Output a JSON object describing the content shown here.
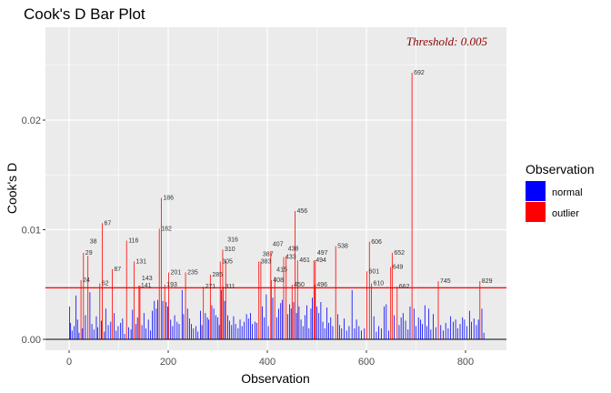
{
  "chart_data": {
    "type": "bar",
    "title": "Cook's D Bar Plot",
    "xlabel": "Observation",
    "ylabel": "Cook's D",
    "xlim": [
      -48,
      882
    ],
    "ylim": [
      -0.001,
      0.0285
    ],
    "x_ticks": [
      0,
      200,
      400,
      600,
      800
    ],
    "x_tick_labels": [
      "0",
      "200",
      "400",
      "600",
      "800"
    ],
    "y_ticks": [
      0,
      0.01,
      0.02
    ],
    "y_tick_labels": [
      "0.00",
      "0.01",
      "0.02"
    ],
    "grid": true,
    "threshold": 0.0047,
    "threshold_label": "Threshold: 0.005",
    "legend": {
      "title": "Observation",
      "placement": "right",
      "entries": [
        {
          "label": "normal",
          "color": "#0000FF"
        },
        {
          "label": "outlier",
          "color": "#FF0000"
        }
      ]
    },
    "outliers": [
      [
        24,
        0.0054
      ],
      [
        29,
        0.0079
      ],
      [
        38,
        0.0076
      ],
      [
        62,
        0.0051
      ],
      [
        67,
        0.0106
      ],
      [
        87,
        0.0064
      ],
      [
        116,
        0.009
      ],
      [
        131,
        0.0071
      ],
      [
        141,
        0.0049
      ],
      [
        143,
        0.0049
      ],
      [
        182,
        0.0101
      ],
      [
        186,
        0.0129
      ],
      [
        193,
        0.005
      ],
      [
        201,
        0.0061
      ],
      [
        235,
        0.0061
      ],
      [
        271,
        0.0048
      ],
      [
        285,
        0.0059
      ],
      [
        305,
        0.0071
      ],
      [
        310,
        0.0082
      ],
      [
        311,
        0.0048
      ],
      [
        316,
        0.0071
      ],
      [
        383,
        0.0071
      ],
      [
        387,
        0.0071
      ],
      [
        407,
        0.008
      ],
      [
        408,
        0.0054
      ],
      [
        415,
        0.0057
      ],
      [
        433,
        0.0075
      ],
      [
        438,
        0.0076
      ],
      [
        450,
        0.005
      ],
      [
        456,
        0.0117
      ],
      [
        461,
        0.0072
      ],
      [
        494,
        0.0072
      ],
      [
        496,
        0.005
      ],
      [
        497,
        0.0072
      ],
      [
        538,
        0.0085
      ],
      [
        601,
        0.0062
      ],
      [
        606,
        0.0089
      ],
      [
        610,
        0.0051
      ],
      [
        649,
        0.0066
      ],
      [
        652,
        0.0079
      ],
      [
        662,
        0.0048
      ],
      [
        692,
        0.0243
      ],
      [
        745,
        0.0053
      ],
      [
        829,
        0.0053
      ]
    ],
    "normal": [
      [
        1,
        0.003
      ],
      [
        3,
        0.0015
      ],
      [
        6,
        0.0008
      ],
      [
        10,
        0.0012
      ],
      [
        14,
        0.004
      ],
      [
        17,
        0.0018
      ],
      [
        20,
        0.0006
      ],
      [
        27,
        0.001
      ],
      [
        33,
        0.0022
      ],
      [
        42,
        0.0043
      ],
      [
        46,
        0.0014
      ],
      [
        50,
        0.0009
      ],
      [
        55,
        0.0021
      ],
      [
        58,
        0.0011
      ],
      [
        65,
        0.0017
      ],
      [
        71,
        0.0007
      ],
      [
        74,
        0.0028
      ],
      [
        79,
        0.0013
      ],
      [
        84,
        0.0016
      ],
      [
        91,
        0.0024
      ],
      [
        95,
        0.0008
      ],
      [
        99,
        0.0012
      ],
      [
        104,
        0.0015
      ],
      [
        108,
        0.0019
      ],
      [
        112,
        0.0005
      ],
      [
        120,
        0.0011
      ],
      [
        125,
        0.0009
      ],
      [
        128,
        0.0027
      ],
      [
        135,
        0.0014
      ],
      [
        138,
        0.002
      ],
      [
        147,
        0.0013
      ],
      [
        151,
        0.0024
      ],
      [
        155,
        0.001
      ],
      [
        160,
        0.0018
      ],
      [
        164,
        0.0008
      ],
      [
        168,
        0.0026
      ],
      [
        172,
        0.0035
      ],
      [
        176,
        0.0028
      ],
      [
        179,
        0.0036
      ],
      [
        189,
        0.0035
      ],
      [
        196,
        0.0034
      ],
      [
        199,
        0.003
      ],
      [
        205,
        0.0018
      ],
      [
        209,
        0.0012
      ],
      [
        213,
        0.0022
      ],
      [
        218,
        0.0016
      ],
      [
        222,
        0.0014
      ],
      [
        228,
        0.0045
      ],
      [
        231,
        0.0023
      ],
      [
        239,
        0.0028
      ],
      [
        243,
        0.0019
      ],
      [
        247,
        0.0014
      ],
      [
        251,
        0.001
      ],
      [
        256,
        0.0012
      ],
      [
        260,
        0.0007
      ],
      [
        265,
        0.0026
      ],
      [
        268,
        0.0013
      ],
      [
        275,
        0.0024
      ],
      [
        279,
        0.002
      ],
      [
        282,
        0.0018
      ],
      [
        288,
        0.0031
      ],
      [
        292,
        0.0028
      ],
      [
        296,
        0.0022
      ],
      [
        300,
        0.002
      ],
      [
        303,
        0.0013
      ],
      [
        307,
        0.0045
      ],
      [
        314,
        0.0035
      ],
      [
        320,
        0.0022
      ],
      [
        324,
        0.0017
      ],
      [
        328,
        0.0013
      ],
      [
        332,
        0.0021
      ],
      [
        336,
        0.0014
      ],
      [
        341,
        0.001
      ],
      [
        345,
        0.0018
      ],
      [
        349,
        0.0012
      ],
      [
        353,
        0.0016
      ],
      [
        358,
        0.0023
      ],
      [
        362,
        0.0019
      ],
      [
        366,
        0.0024
      ],
      [
        370,
        0.0014
      ],
      [
        375,
        0.0016
      ],
      [
        379,
        0.0015
      ],
      [
        390,
        0.003
      ],
      [
        394,
        0.002
      ],
      [
        398,
        0.0041
      ],
      [
        402,
        0.0012
      ],
      [
        411,
        0.0038
      ],
      [
        419,
        0.002
      ],
      [
        423,
        0.0028
      ],
      [
        427,
        0.0033
      ],
      [
        430,
        0.0036
      ],
      [
        441,
        0.0023
      ],
      [
        445,
        0.0032
      ],
      [
        448,
        0.0028
      ],
      [
        453,
        0.0034
      ],
      [
        459,
        0.0024
      ],
      [
        464,
        0.003
      ],
      [
        468,
        0.0018
      ],
      [
        472,
        0.0012
      ],
      [
        476,
        0.0022
      ],
      [
        480,
        0.0031
      ],
      [
        484,
        0.001
      ],
      [
        488,
        0.0028
      ],
      [
        491,
        0.0038
      ],
      [
        500,
        0.003
      ],
      [
        504,
        0.0024
      ],
      [
        508,
        0.0034
      ],
      [
        512,
        0.0016
      ],
      [
        516,
        0.001
      ],
      [
        520,
        0.0029
      ],
      [
        524,
        0.0015
      ],
      [
        528,
        0.002
      ],
      [
        532,
        0.0012
      ],
      [
        542,
        0.0023
      ],
      [
        546,
        0.0013
      ],
      [
        550,
        0.001
      ],
      [
        555,
        0.0019
      ],
      [
        560,
        0.0008
      ],
      [
        565,
        0.0012
      ],
      [
        571,
        0.0045
      ],
      [
        576,
        0.001
      ],
      [
        580,
        0.0018
      ],
      [
        585,
        0.0012
      ],
      [
        590,
        0.0008
      ],
      [
        596,
        0.001
      ],
      [
        615,
        0.0021
      ],
      [
        620,
        0.0007
      ],
      [
        625,
        0.0012
      ],
      [
        630,
        0.001
      ],
      [
        636,
        0.003
      ],
      [
        640,
        0.0032
      ],
      [
        645,
        0.0008
      ],
      [
        656,
        0.0022
      ],
      [
        666,
        0.0013
      ],
      [
        670,
        0.002
      ],
      [
        674,
        0.0024
      ],
      [
        679,
        0.0017
      ],
      [
        684,
        0.0009
      ],
      [
        688,
        0.003
      ],
      [
        696,
        0.0028
      ],
      [
        700,
        0.0012
      ],
      [
        705,
        0.002
      ],
      [
        709,
        0.0018
      ],
      [
        713,
        0.0014
      ],
      [
        718,
        0.0031
      ],
      [
        722,
        0.0012
      ],
      [
        726,
        0.0028
      ],
      [
        730,
        0.0009
      ],
      [
        735,
        0.0023
      ],
      [
        740,
        0.0011
      ],
      [
        750,
        0.0013
      ],
      [
        755,
        0.0008
      ],
      [
        760,
        0.0015
      ],
      [
        765,
        0.001
      ],
      [
        770,
        0.0021
      ],
      [
        775,
        0.0016
      ],
      [
        780,
        0.0018
      ],
      [
        784,
        0.001
      ],
      [
        789,
        0.0014
      ],
      [
        794,
        0.002
      ],
      [
        798,
        0.0018
      ],
      [
        803,
        0.0012
      ],
      [
        808,
        0.0026
      ],
      [
        812,
        0.0016
      ],
      [
        817,
        0.0019
      ],
      [
        822,
        0.0013
      ],
      [
        826,
        0.0018
      ],
      [
        833,
        0.0028
      ],
      [
        837,
        0.0006
      ]
    ]
  }
}
